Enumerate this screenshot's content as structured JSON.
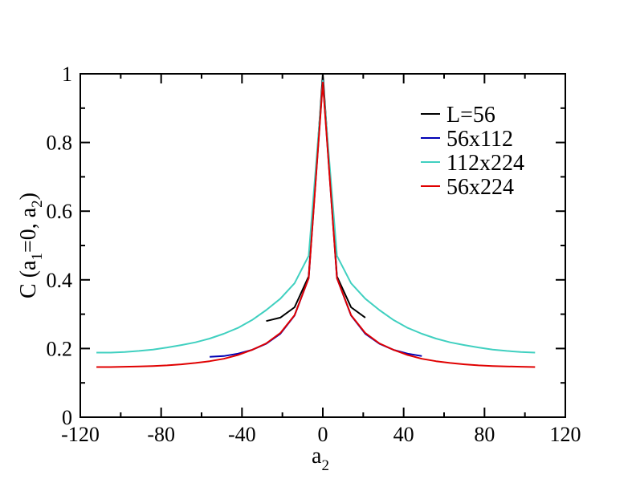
{
  "chart_data": {
    "type": "line",
    "title": "",
    "xlabel": {
      "main": "a",
      "sub": "2"
    },
    "ylabel": {
      "parts": [
        "C (a",
        "1",
        "=0, a",
        "2",
        ")"
      ]
    },
    "xlim": [
      -120,
      120
    ],
    "ylim": [
      0,
      1
    ],
    "x_ticks": [
      -120,
      -80,
      -40,
      0,
      40,
      80,
      120
    ],
    "x_tick_labels": [
      "-120",
      "-80",
      "-40",
      "0",
      "40",
      "80",
      "120"
    ],
    "y_ticks": [
      0,
      0.2,
      0.4,
      0.6,
      0.8,
      1
    ],
    "y_tick_labels": [
      "0",
      "0.2",
      "0.4",
      "0.6",
      "0.8",
      "1"
    ],
    "grid": false,
    "legend_position": "top-right",
    "series": [
      {
        "name": "L=56",
        "color": "#000000",
        "x": [
          -28,
          -21,
          -14,
          -7,
          0,
          7,
          14,
          21
        ],
        "y": [
          0.28,
          0.29,
          0.32,
          0.41,
          1.0,
          0.41,
          0.32,
          0.29
        ]
      },
      {
        "name": "56x112",
        "color": "#0000b4",
        "x": [
          -56,
          -49,
          -42,
          -35,
          -28,
          -21,
          -14,
          -7,
          0,
          7,
          14,
          21,
          28,
          35,
          42,
          49
        ],
        "y": [
          0.176,
          0.178,
          0.185,
          0.196,
          0.214,
          0.243,
          0.296,
          0.405,
          0.98,
          0.405,
          0.296,
          0.243,
          0.214,
          0.196,
          0.185,
          0.178
        ]
      },
      {
        "name": "112x224",
        "color": "#40d0c0",
        "x": [
          -112,
          -105,
          -98,
          -91,
          -84,
          -77,
          -70,
          -63,
          -56,
          -49,
          -42,
          -35,
          -28,
          -21,
          -14,
          -7,
          0,
          7,
          14,
          21,
          28,
          35,
          42,
          49,
          56,
          63,
          70,
          77,
          84,
          91,
          98,
          105
        ],
        "y": [
          0.188,
          0.188,
          0.19,
          0.193,
          0.197,
          0.203,
          0.21,
          0.218,
          0.229,
          0.243,
          0.26,
          0.283,
          0.312,
          0.345,
          0.39,
          0.47,
          0.98,
          0.47,
          0.39,
          0.345,
          0.312,
          0.283,
          0.26,
          0.243,
          0.229,
          0.218,
          0.21,
          0.203,
          0.197,
          0.193,
          0.19,
          0.188
        ]
      },
      {
        "name": "56x224",
        "color": "#e00000",
        "x": [
          -112,
          -105,
          -98,
          -91,
          -84,
          -77,
          -70,
          -63,
          -56,
          -49,
          -42,
          -35,
          -28,
          -21,
          -14,
          -7,
          0,
          7,
          14,
          21,
          28,
          35,
          42,
          49,
          56,
          63,
          70,
          77,
          84,
          91,
          98,
          105
        ],
        "y": [
          0.146,
          0.146,
          0.147,
          0.148,
          0.149,
          0.151,
          0.154,
          0.158,
          0.163,
          0.17,
          0.181,
          0.196,
          0.215,
          0.245,
          0.297,
          0.405,
          0.975,
          0.405,
          0.297,
          0.245,
          0.215,
          0.196,
          0.181,
          0.17,
          0.163,
          0.158,
          0.154,
          0.151,
          0.149,
          0.148,
          0.147,
          0.146
        ]
      }
    ]
  }
}
